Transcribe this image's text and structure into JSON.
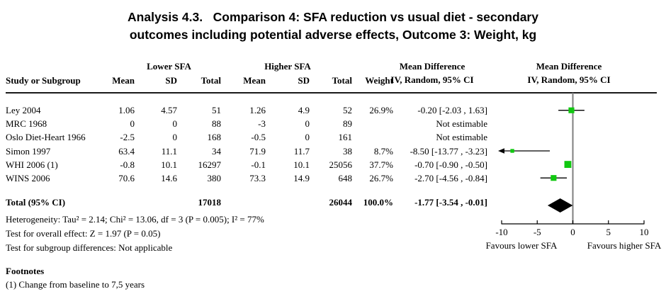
{
  "title": {
    "line1": "Analysis 4.3.   Comparison 4: SFA reduction vs usual diet - secondary",
    "line2": "outcomes including potential adverse effects, Outcome 3: Weight, kg"
  },
  "table": {
    "group_headers": {
      "lower": "Lower SFA",
      "higher": "Higher SFA",
      "md_text_col": "Mean Difference",
      "md_plot_col": "Mean Difference"
    },
    "column_headers": {
      "study": "Study or Subgroup",
      "mean": "Mean",
      "sd": "SD",
      "total": "Total",
      "weight": "Weight",
      "ci_method": "IV, Random, 95% CI"
    },
    "rows": [
      {
        "study": "Ley 2004",
        "mean1": "1.06",
        "sd1": "4.57",
        "total1": "51",
        "mean2": "1.26",
        "sd2": "4.9",
        "total2": "52",
        "weight": "26.9%",
        "ci": "-0.20 [-2.03 , 1.63]"
      },
      {
        "study": "MRC 1968",
        "mean1": "0",
        "sd1": "0",
        "total1": "88",
        "mean2": "-3",
        "sd2": "0",
        "total2": "89",
        "weight": "",
        "ci": "Not estimable"
      },
      {
        "study": "Oslo Diet-Heart 1966",
        "mean1": "-2.5",
        "sd1": "0",
        "total1": "168",
        "mean2": "-0.5",
        "sd2": "0",
        "total2": "161",
        "weight": "",
        "ci": "Not estimable"
      },
      {
        "study": "Simon 1997",
        "mean1": "63.4",
        "sd1": "11.1",
        "total1": "34",
        "mean2": "71.9",
        "sd2": "11.7",
        "total2": "38",
        "weight": "8.7%",
        "ci": "-8.50 [-13.77 , -3.23]"
      },
      {
        "study": "WHI 2006 (1)",
        "mean1": "-0.8",
        "sd1": "10.1",
        "total1": "16297",
        "mean2": "-0.1",
        "sd2": "10.1",
        "total2": "25056",
        "weight": "37.7%",
        "ci": "-0.70 [-0.90 , -0.50]"
      },
      {
        "study": "WINS 2006",
        "mean1": "70.6",
        "sd1": "14.6",
        "total1": "380",
        "mean2": "73.3",
        "sd2": "14.9",
        "total2": "648",
        "weight": "26.7%",
        "ci": "-2.70 [-4.56 , -0.84]"
      }
    ],
    "total_row": {
      "label": "Total (95% CI)",
      "total1": "17018",
      "total2": "26044",
      "weight": "100.0%",
      "ci": "-1.77 [-3.54 , -0.01]"
    },
    "stats": [
      "Heterogeneity: Tau² = 2.14; Chi² = 13.06, df = 3 (P = 0.005); I² = 77%",
      "Test for overall effect: Z = 1.97 (P = 0.05)",
      "Test for subgroup differences: Not applicable"
    ]
  },
  "footnotes": {
    "heading": "Footnotes",
    "items": [
      "(1) Change from baseline to 7,5 years"
    ]
  },
  "chart_data": {
    "type": "forest",
    "effect_measure": "Mean Difference",
    "method": "IV, Random, 95% CI",
    "axis": {
      "xlim": [
        -10,
        10
      ],
      "ticks": [
        -10,
        -5,
        0,
        5,
        10
      ],
      "left_label": "Favours lower SFA",
      "right_label": "Favours higher SFA"
    },
    "studies": [
      {
        "name": "Ley 2004",
        "estimate": -0.2,
        "ci_low": -2.03,
        "ci_high": 1.63,
        "weight_pct": 26.9
      },
      {
        "name": "MRC 1968",
        "estimate": null,
        "ci_low": null,
        "ci_high": null,
        "weight_pct": null,
        "note": "Not estimable"
      },
      {
        "name": "Oslo Diet-Heart 1966",
        "estimate": null,
        "ci_low": null,
        "ci_high": null,
        "weight_pct": null,
        "note": "Not estimable"
      },
      {
        "name": "Simon 1997",
        "estimate": -8.5,
        "ci_low": -13.77,
        "ci_high": -3.23,
        "weight_pct": 8.7
      },
      {
        "name": "WHI 2006 (1)",
        "estimate": -0.7,
        "ci_low": -0.9,
        "ci_high": -0.5,
        "weight_pct": 37.7
      },
      {
        "name": "WINS 2006",
        "estimate": -2.7,
        "ci_low": -4.56,
        "ci_high": -0.84,
        "weight_pct": 26.7
      }
    ],
    "total": {
      "estimate": -1.77,
      "ci_low": -3.54,
      "ci_high": -0.01,
      "total_n_lower": 17018,
      "total_n_higher": 26044,
      "weight_pct": 100.0
    }
  },
  "colors": {
    "marker_green": "#10C810",
    "diamond_black": "#000000",
    "zero_line_gray": "#7f7f7f",
    "axis_black": "#000000"
  }
}
